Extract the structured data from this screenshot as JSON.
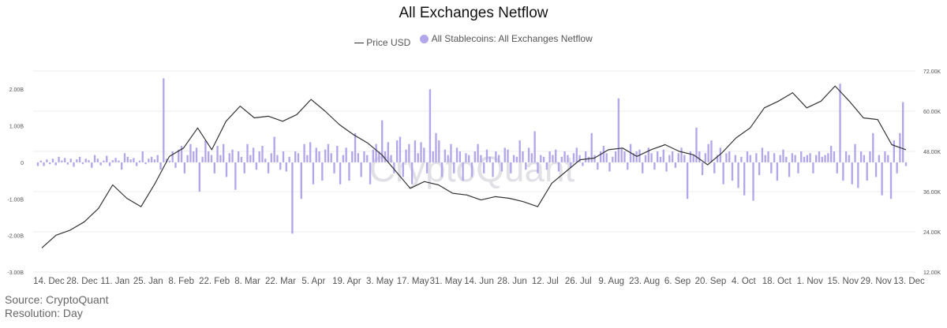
{
  "chart_data": {
    "type": "bar+line",
    "title": "All Exchanges Netflow",
    "legend_position": "top-center",
    "watermark": "CryptoQuant",
    "x_tick_labels": [
      "14. Dec",
      "28. Dec",
      "11. Jan",
      "25. Jan",
      "8. Feb",
      "22. Feb",
      "8. Mar",
      "22. Mar",
      "5. Apr",
      "19. Apr",
      "3. May",
      "17. May",
      "31. May",
      "14. Jun",
      "28. Jun",
      "12. Jul",
      "26. Jul",
      "9. Aug",
      "23. Aug",
      "6. Sep",
      "20. Sep",
      "4. Oct",
      "18. Oct",
      "1. Nov",
      "15. Nov",
      "29. Nov",
      "13. Dec"
    ],
    "left_axis": {
      "ticks": [
        "-3.00B",
        "-2.00B",
        "-1.00B",
        "0",
        "1.00B",
        "2.00B"
      ],
      "ylim": [
        -3,
        2.5
      ],
      "unit": "B"
    },
    "right_axis": {
      "ticks": [
        "12.00K",
        "24.00K",
        "36.00K",
        "48.00K",
        "60.00K",
        "72.00K"
      ],
      "ylim": [
        12,
        72
      ],
      "unit": "K"
    },
    "series": [
      {
        "name": "Price USD",
        "type": "line",
        "axis": "right",
        "color": "#333333",
        "step_days": 7,
        "values": [
          19.2,
          23.0,
          24.5,
          27.0,
          31.0,
          38.0,
          34.0,
          31.5,
          38.5,
          46.5,
          49.0,
          55.0,
          48.5,
          57.0,
          61.5,
          58.0,
          58.5,
          57.0,
          59.0,
          63.5,
          60.0,
          56.0,
          53.0,
          50.5,
          47.0,
          42.0,
          37.0,
          39.0,
          38.0,
          35.5,
          35.0,
          33.5,
          34.5,
          34.0,
          33.0,
          31.5,
          38.5,
          42.0,
          45.5,
          46.0,
          48.5,
          49.0,
          46.5,
          48.5,
          50.0,
          48.0,
          47.0,
          44.0,
          47.5,
          52.0,
          55.0,
          61.0,
          63.0,
          65.5,
          61.0,
          63.0,
          67.5,
          63.0,
          58.0,
          57.5,
          50.0,
          48.5
        ]
      },
      {
        "name": "All Stablecoins: All Exchanges Netflow",
        "type": "bar",
        "axis": "left",
        "color": "#b3a6ea",
        "values": [
          -0.1,
          0.05,
          -0.1,
          0.08,
          -0.05,
          0.1,
          -0.08,
          0.15,
          0.05,
          0.12,
          -0.06,
          0.1,
          -0.12,
          0.08,
          0.15,
          -0.05,
          0.1,
          0.06,
          -0.15,
          0.2,
          0.1,
          -0.08,
          0.05,
          0.18,
          -0.1,
          0.06,
          0.12,
          0.05,
          -0.2,
          0.25,
          0.15,
          0.08,
          0.12,
          -0.1,
          0.05,
          0.3,
          -0.05,
          0.1,
          0.15,
          0.08,
          0.2,
          -0.2,
          2.3,
          0.1,
          0.05,
          0.3,
          -0.15,
          0.35,
          0.45,
          -0.3,
          0.2,
          0.5,
          0.3,
          0.4,
          -0.8,
          0.15,
          0.6,
          0.3,
          0.2,
          -0.3,
          0.45,
          0.2,
          0.5,
          -0.4,
          0.25,
          0.35,
          -0.75,
          0.3,
          0.15,
          -0.3,
          0.5,
          0.2,
          0.4,
          -0.2,
          0.3,
          0.45,
          0.1,
          -0.3,
          0.25,
          0.7,
          0.2,
          -0.2,
          0.3,
          -0.25,
          0.15,
          -1.95,
          0.3,
          0.25,
          -1.0,
          0.5,
          0.2,
          0.55,
          -0.6,
          0.4,
          0.3,
          -0.5,
          0.35,
          0.5,
          0.25,
          -0.3,
          0.45,
          -0.6,
          0.2,
          0.4,
          -0.5,
          0.3,
          0.8,
          0.25,
          -0.4,
          0.3,
          0.2,
          -0.6,
          0.35,
          0.5,
          0.3,
          1.15,
          0.3,
          0.55,
          0.2,
          -0.3,
          0.6,
          0.7,
          -0.4,
          0.35,
          0.5,
          -0.6,
          0.6,
          0.25,
          0.55,
          0.4,
          -0.3,
          2.0,
          0.3,
          0.8,
          0.6,
          -0.4,
          0.35,
          0.2,
          0.5,
          -0.3,
          0.4,
          0.3,
          -0.5,
          0.25,
          0.2,
          -0.4,
          0.3,
          0.5,
          0.2,
          -0.3,
          0.35,
          0.15,
          -0.4,
          0.3,
          0.2,
          -0.25,
          0.4,
          0.35,
          -0.3,
          0.2,
          0.15,
          0.6,
          0.3,
          -0.2,
          0.4,
          0.25,
          0.85,
          -0.3,
          0.2,
          0.15,
          -0.2,
          0.3,
          0.2,
          0.35,
          -0.25,
          0.15,
          0.3,
          0.2,
          -0.15,
          0.25,
          0.4,
          0.2,
          -0.1,
          0.3,
          0.15,
          0.8,
          0.2,
          -0.2,
          0.3,
          0.45,
          0.25,
          -0.25,
          0.15,
          0.3,
          1.75,
          0.4,
          0.3,
          -0.2,
          0.5,
          0.25,
          0.3,
          0.35,
          -0.3,
          0.2,
          0.4,
          0.25,
          -0.2,
          0.3,
          0.15,
          0.35,
          -0.25,
          0.2,
          0.3,
          -0.15,
          0.25,
          0.4,
          0.2,
          -1.0,
          0.3,
          0.2,
          0.95,
          0.3,
          -0.35,
          0.25,
          0.5,
          0.6,
          -0.3,
          0.2,
          0.4,
          -0.6,
          0.25,
          0.3,
          -0.5,
          0.2,
          -0.7,
          0.15,
          -0.9,
          0.3,
          0.2,
          -1.05,
          0.25,
          -0.35,
          0.4,
          0.2,
          0.3,
          -0.3,
          0.25,
          -0.5,
          0.2,
          0.35,
          0.15,
          -0.4,
          0.25,
          0.2,
          -0.3,
          0.3,
          0.15,
          0.2,
          0.25,
          -0.3,
          0.2,
          0.3,
          0.15,
          0.2,
          0.25,
          0.45,
          0.3,
          -0.3,
          2.15,
          -0.5,
          0.3,
          0.2,
          -0.6,
          0.5,
          -0.7,
          0.3,
          0.2,
          -0.5,
          0.3,
          0.8,
          -0.4,
          0.2,
          -0.9,
          0.3,
          0.2,
          -1.0,
          0.6,
          -0.3,
          0.8,
          1.65,
          -0.1
        ]
      }
    ]
  },
  "footer": {
    "source": "Source: CryptoQuant",
    "resolution": "Resolution: Day"
  }
}
